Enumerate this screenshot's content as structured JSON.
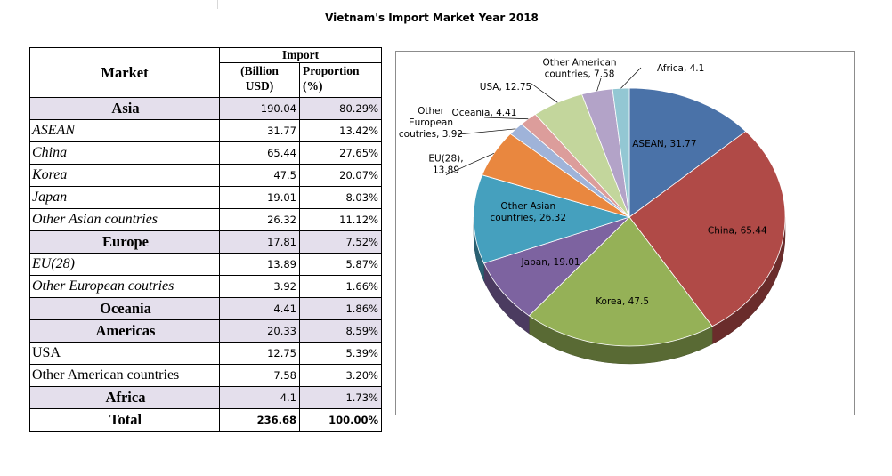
{
  "title": "Vietnam's Import Market Year 2018",
  "table": {
    "header": {
      "market": "Market",
      "import": "Import",
      "value_line1": "(Billion",
      "value_line2": "USD)",
      "proportion_line1": "Proportion",
      "proportion_line2": "(%)"
    },
    "rows": [
      {
        "market": "Asia",
        "value": "190.04",
        "proportion": "80.29%",
        "kind": "region"
      },
      {
        "market": "ASEAN",
        "value": "31.77",
        "proportion": "13.42%",
        "kind": "sub-italic"
      },
      {
        "market": "China",
        "value": "65.44",
        "proportion": "27.65%",
        "kind": "sub-italic"
      },
      {
        "market": "Korea",
        "value": "47.5",
        "proportion": "20.07%",
        "kind": "sub-italic"
      },
      {
        "market": "Japan",
        "value": "19.01",
        "proportion": "8.03%",
        "kind": "sub-italic"
      },
      {
        "market": "Other Asian countries",
        "value": "26.32",
        "proportion": "11.12%",
        "kind": "sub-italic"
      },
      {
        "market": "Europe",
        "value": "17.81",
        "proportion": "7.52%",
        "kind": "region"
      },
      {
        "market": "EU(28)",
        "value": "13.89",
        "proportion": "5.87%",
        "kind": "sub-italic"
      },
      {
        "market": "Other European coutries",
        "value": "3.92",
        "proportion": "1.66%",
        "kind": "sub-italic"
      },
      {
        "market": "Oceania",
        "value": "4.41",
        "proportion": "1.86%",
        "kind": "region"
      },
      {
        "market": "Americas",
        "value": "20.33",
        "proportion": "8.59%",
        "kind": "region"
      },
      {
        "market": "USA",
        "value": "12.75",
        "proportion": "5.39%",
        "kind": "sub"
      },
      {
        "market": "Other American countries",
        "value": "7.58",
        "proportion": "3.20%",
        "kind": "sub"
      },
      {
        "market": "Africa",
        "value": "4.1",
        "proportion": "1.73%",
        "kind": "region"
      }
    ],
    "total": {
      "market": "Total",
      "value": "236.68",
      "proportion": "100.00%"
    }
  },
  "chart_data": {
    "type": "pie",
    "title": "Vietnam's Import Market Year 2018",
    "start_angle_deg": 0,
    "direction": "clockwise",
    "slices": [
      {
        "label": "ASEAN",
        "value": 31.77,
        "color": "#4a72a8",
        "label_lines": [
          "ASEAN, 31.77"
        ]
      },
      {
        "label": "China",
        "value": 65.44,
        "color": "#b04a47",
        "label_lines": [
          "China, 65.44"
        ]
      },
      {
        "label": "Korea",
        "value": 47.5,
        "color": "#95b157",
        "label_lines": [
          "Korea, 47.5"
        ]
      },
      {
        "label": "Japan",
        "value": 19.01,
        "color": "#7d63a0",
        "label_lines": [
          "Japan, 19.01"
        ]
      },
      {
        "label": "Other Asian countries",
        "value": 26.32,
        "color": "#45a0be",
        "label_lines": [
          "Other Asian",
          "countries, 26.32"
        ]
      },
      {
        "label": "EU(28)",
        "value": 13.89,
        "color": "#e9873f",
        "label_lines": [
          "EU(28),",
          "13.89"
        ]
      },
      {
        "label": "Other European coutries",
        "value": 3.92,
        "color": "#9fb3d9",
        "label_lines": [
          "Other",
          "European",
          "coutries, 3.92"
        ]
      },
      {
        "label": "Oceania",
        "value": 4.41,
        "color": "#dc9d9b",
        "label_lines": [
          "Oceania, 4.41"
        ]
      },
      {
        "label": "USA",
        "value": 12.75,
        "color": "#c3d69c",
        "label_lines": [
          "USA, 12.75"
        ]
      },
      {
        "label": "Other American countries",
        "value": 7.58,
        "color": "#b3a3c8",
        "label_lines": [
          "Other American",
          "countries, 7.58"
        ]
      },
      {
        "label": "Africa",
        "value": 4.1,
        "color": "#93c7d3",
        "label_lines": [
          "Africa, 4.1"
        ]
      }
    ]
  }
}
